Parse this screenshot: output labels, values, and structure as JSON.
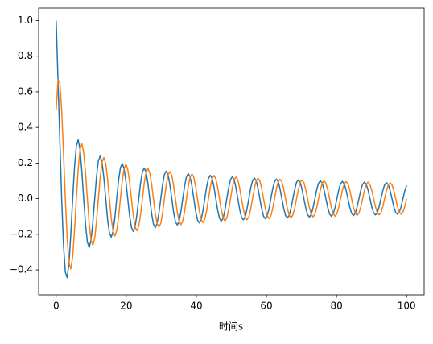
{
  "chart_data": {
    "type": "line",
    "xlabel": "时间s",
    "x": [
      0,
      0.52,
      1.05,
      1.57,
      2.09,
      2.62,
      3.14,
      3.67,
      4.19,
      4.71,
      5.24,
      5.76,
      6.28,
      6.81,
      7.33,
      7.85,
      8.38,
      8.9,
      9.42,
      9.95,
      10.47,
      11.0,
      11.52,
      12.04,
      12.57,
      13.09,
      13.61,
      14.14,
      14.66,
      15.18,
      15.71,
      16.23,
      16.76,
      17.28,
      17.8,
      18.33,
      18.85,
      19.37,
      19.9,
      20.42,
      20.94,
      21.47,
      21.99,
      22.51,
      23.04,
      23.56,
      24.09,
      24.61,
      25.13,
      25.66,
      26.18,
      26.7,
      27.23,
      27.75,
      28.27,
      28.8,
      29.32,
      29.85,
      30.37,
      30.89,
      31.42,
      31.94,
      32.46,
      32.99,
      33.51,
      34.03,
      34.56,
      35.08,
      35.6,
      36.13,
      36.65,
      37.18,
      37.7,
      38.22,
      38.75,
      39.27,
      39.79,
      40.32,
      40.84,
      41.36,
      41.89,
      42.41,
      42.94,
      43.46,
      43.98,
      44.51,
      45.03,
      45.55,
      46.08,
      46.6,
      47.12,
      47.65,
      48.17,
      48.69,
      49.22,
      49.74,
      50.27,
      50.79,
      51.31,
      51.84,
      52.36,
      52.88,
      53.41,
      53.93,
      54.45,
      54.98,
      55.5,
      56.03,
      56.55,
      57.07,
      57.6,
      58.12,
      58.64,
      59.17,
      59.69,
      60.21,
      60.74,
      61.26,
      61.78,
      62.31,
      62.83,
      63.36,
      63.88,
      64.4,
      64.93,
      65.45,
      65.97,
      66.5,
      67.02,
      67.54,
      68.07,
      68.59,
      69.12,
      69.64,
      70.16,
      70.69,
      71.21,
      71.73,
      72.26,
      72.78,
      73.3,
      73.83,
      74.35,
      74.87,
      75.4,
      75.92,
      76.45,
      76.97,
      77.49,
      78.02,
      78.54,
      79.06,
      79.59,
      80.11,
      80.63,
      81.16,
      81.68,
      82.21,
      82.73,
      83.25,
      83.78,
      84.3,
      84.82,
      85.35,
      85.87,
      86.39,
      86.92,
      87.44,
      87.96,
      88.49,
      89.01,
      89.54,
      90.06,
      90.58,
      91.11,
      91.63,
      92.15,
      92.68,
      93.2,
      93.72,
      94.25,
      94.77,
      95.3,
      95.82,
      96.34,
      96.87,
      97.39,
      97.91,
      98.44,
      98.96,
      99.48,
      100
    ],
    "series": [
      {
        "color": "#1f77b4",
        "values": [
          1,
          0.668,
          0.326,
          0,
          -0.259,
          -0.413,
          -0.444,
          -0.361,
          -0.197,
          0,
          0.179,
          0.297,
          0.33,
          0.276,
          0.154,
          0,
          -0.145,
          -0.244,
          -0.275,
          -0.232,
          -0.131,
          0,
          0.125,
          0.212,
          0.24,
          0.204,
          0.116,
          0,
          -0.112,
          -0.191,
          -0.216,
          -0.184,
          -0.105,
          0,
          0.102,
          0.174,
          0.198,
          0.169,
          0.097,
          0,
          -0.094,
          -0.161,
          -0.184,
          -0.158,
          -0.09,
          0,
          0.088,
          0.151,
          0.172,
          0.148,
          0.085,
          0,
          -0.083,
          -0.142,
          -0.163,
          -0.139,
          -0.08,
          0,
          0.079,
          0.135,
          0.155,
          0.133,
          0.076,
          0,
          -0.075,
          -0.129,
          -0.148,
          -0.127,
          -0.073,
          0,
          0.072,
          0.123,
          0.141,
          0.121,
          0.07,
          0,
          -0.069,
          -0.119,
          -0.136,
          -0.117,
          -0.067,
          0,
          0.067,
          0.114,
          0.131,
          0.113,
          0.065,
          0,
          -0.064,
          -0.11,
          -0.127,
          -0.109,
          -0.063,
          0,
          0.062,
          0.107,
          0.123,
          0.106,
          0.061,
          0,
          -0.06,
          -0.104,
          -0.119,
          -0.103,
          -0.059,
          0,
          0.059,
          0.1,
          0.116,
          0.1,
          0.058,
          0,
          -0.057,
          -0.098,
          -0.113,
          -0.097,
          -0.056,
          0,
          0.056,
          0.095,
          0.11,
          0.095,
          0.055,
          0,
          -0.054,
          -0.094,
          -0.108,
          -0.093,
          -0.054,
          0,
          0.053,
          0.091,
          0.105,
          0.091,
          0.052,
          0,
          -0.052,
          -0.089,
          -0.103,
          -0.088,
          -0.051,
          0,
          0.051,
          0.087,
          0.1,
          0.087,
          0.05,
          0,
          -0.05,
          -0.086,
          -0.099,
          -0.085,
          -0.049,
          0,
          0.049,
          0.084,
          0.097,
          0.083,
          0.048,
          0,
          -0.048,
          -0.082,
          -0.095,
          -0.082,
          -0.047,
          0,
          0.047,
          0.081,
          0.093,
          0.081,
          0.047,
          0,
          -0.046,
          -0.08,
          -0.091,
          -0.079,
          -0.046,
          0,
          0.045,
          0.078,
          0.09,
          0.078,
          0.045,
          0,
          -0.045,
          -0.077,
          -0.088,
          -0.076,
          -0.044,
          0,
          0.044,
          0.075
        ]
      },
      {
        "color": "#ff7f0e",
        "values": [
          0.5,
          0.668,
          0.651,
          0.496,
          0.259,
          0,
          -0.222,
          -0.361,
          -0.394,
          -0.325,
          -0.179,
          0,
          0.165,
          0.276,
          0.308,
          0.259,
          0.145,
          0,
          -0.138,
          -0.232,
          -0.262,
          -0.222,
          -0.125,
          0,
          0.12,
          0.204,
          0.231,
          0.197,
          0.112,
          0,
          -0.108,
          -0.184,
          -0.21,
          -0.178,
          -0.102,
          0,
          0.099,
          0.169,
          0.193,
          0.165,
          0.094,
          0,
          -0.092,
          -0.158,
          -0.18,
          -0.154,
          -0.088,
          0,
          0.086,
          0.148,
          0.169,
          0.145,
          0.083,
          0,
          -0.082,
          -0.139,
          -0.16,
          -0.138,
          -0.079,
          0,
          0.078,
          0.133,
          0.152,
          0.131,
          0.075,
          0,
          -0.074,
          -0.127,
          -0.146,
          -0.125,
          -0.072,
          0,
          0.071,
          0.121,
          0.139,
          0.12,
          0.069,
          0,
          -0.068,
          -0.117,
          -0.134,
          -0.115,
          -0.067,
          0,
          0.066,
          0.113,
          0.13,
          0.112,
          0.064,
          0,
          -0.064,
          -0.109,
          -0.125,
          -0.108,
          -0.062,
          0,
          0.062,
          0.106,
          0.121,
          0.105,
          0.06,
          0,
          -0.06,
          -0.103,
          -0.118,
          -0.102,
          -0.059,
          0,
          0.058,
          0.1,
          0.115,
          0.099,
          0.057,
          0,
          -0.057,
          -0.097,
          -0.112,
          -0.096,
          -0.056,
          0,
          0.055,
          0.095,
          0.109,
          0.094,
          0.054,
          0,
          -0.054,
          -0.093,
          -0.107,
          -0.092,
          -0.053,
          0,
          0.053,
          0.091,
          0.104,
          0.09,
          0.052,
          0,
          -0.052,
          -0.088,
          -0.102,
          -0.088,
          -0.051,
          0,
          0.05,
          0.087,
          0.1,
          0.086,
          0.05,
          0,
          -0.05,
          -0.085,
          -0.098,
          -0.085,
          -0.049,
          0,
          0.049,
          0.083,
          0.096,
          0.083,
          0.048,
          0,
          -0.048,
          -0.082,
          -0.094,
          -0.081,
          -0.047,
          0,
          0.047,
          0.081,
          0.093,
          0.08,
          0.046,
          0,
          -0.046,
          -0.079,
          -0.091,
          -0.079,
          -0.045,
          0,
          0.045,
          0.078,
          0.089,
          0.077,
          0.045,
          0,
          -0.044,
          -0.076,
          -0.088,
          -0.076,
          -0.044,
          -0.001
        ]
      }
    ],
    "xlim": [
      -5,
      105
    ],
    "ylim": [
      -0.54,
      1.07
    ],
    "xticks": [
      0,
      20,
      40,
      60,
      80,
      100
    ],
    "yticks": [
      {
        "value": -0.4,
        "label": "−0.4"
      },
      {
        "value": -0.2,
        "label": "−0.2"
      },
      {
        "value": 0,
        "label": "0.0"
      },
      0.2,
      0.4,
      0.6,
      0.8,
      {
        "value": 1,
        "label": "1.0"
      }
    ]
  }
}
